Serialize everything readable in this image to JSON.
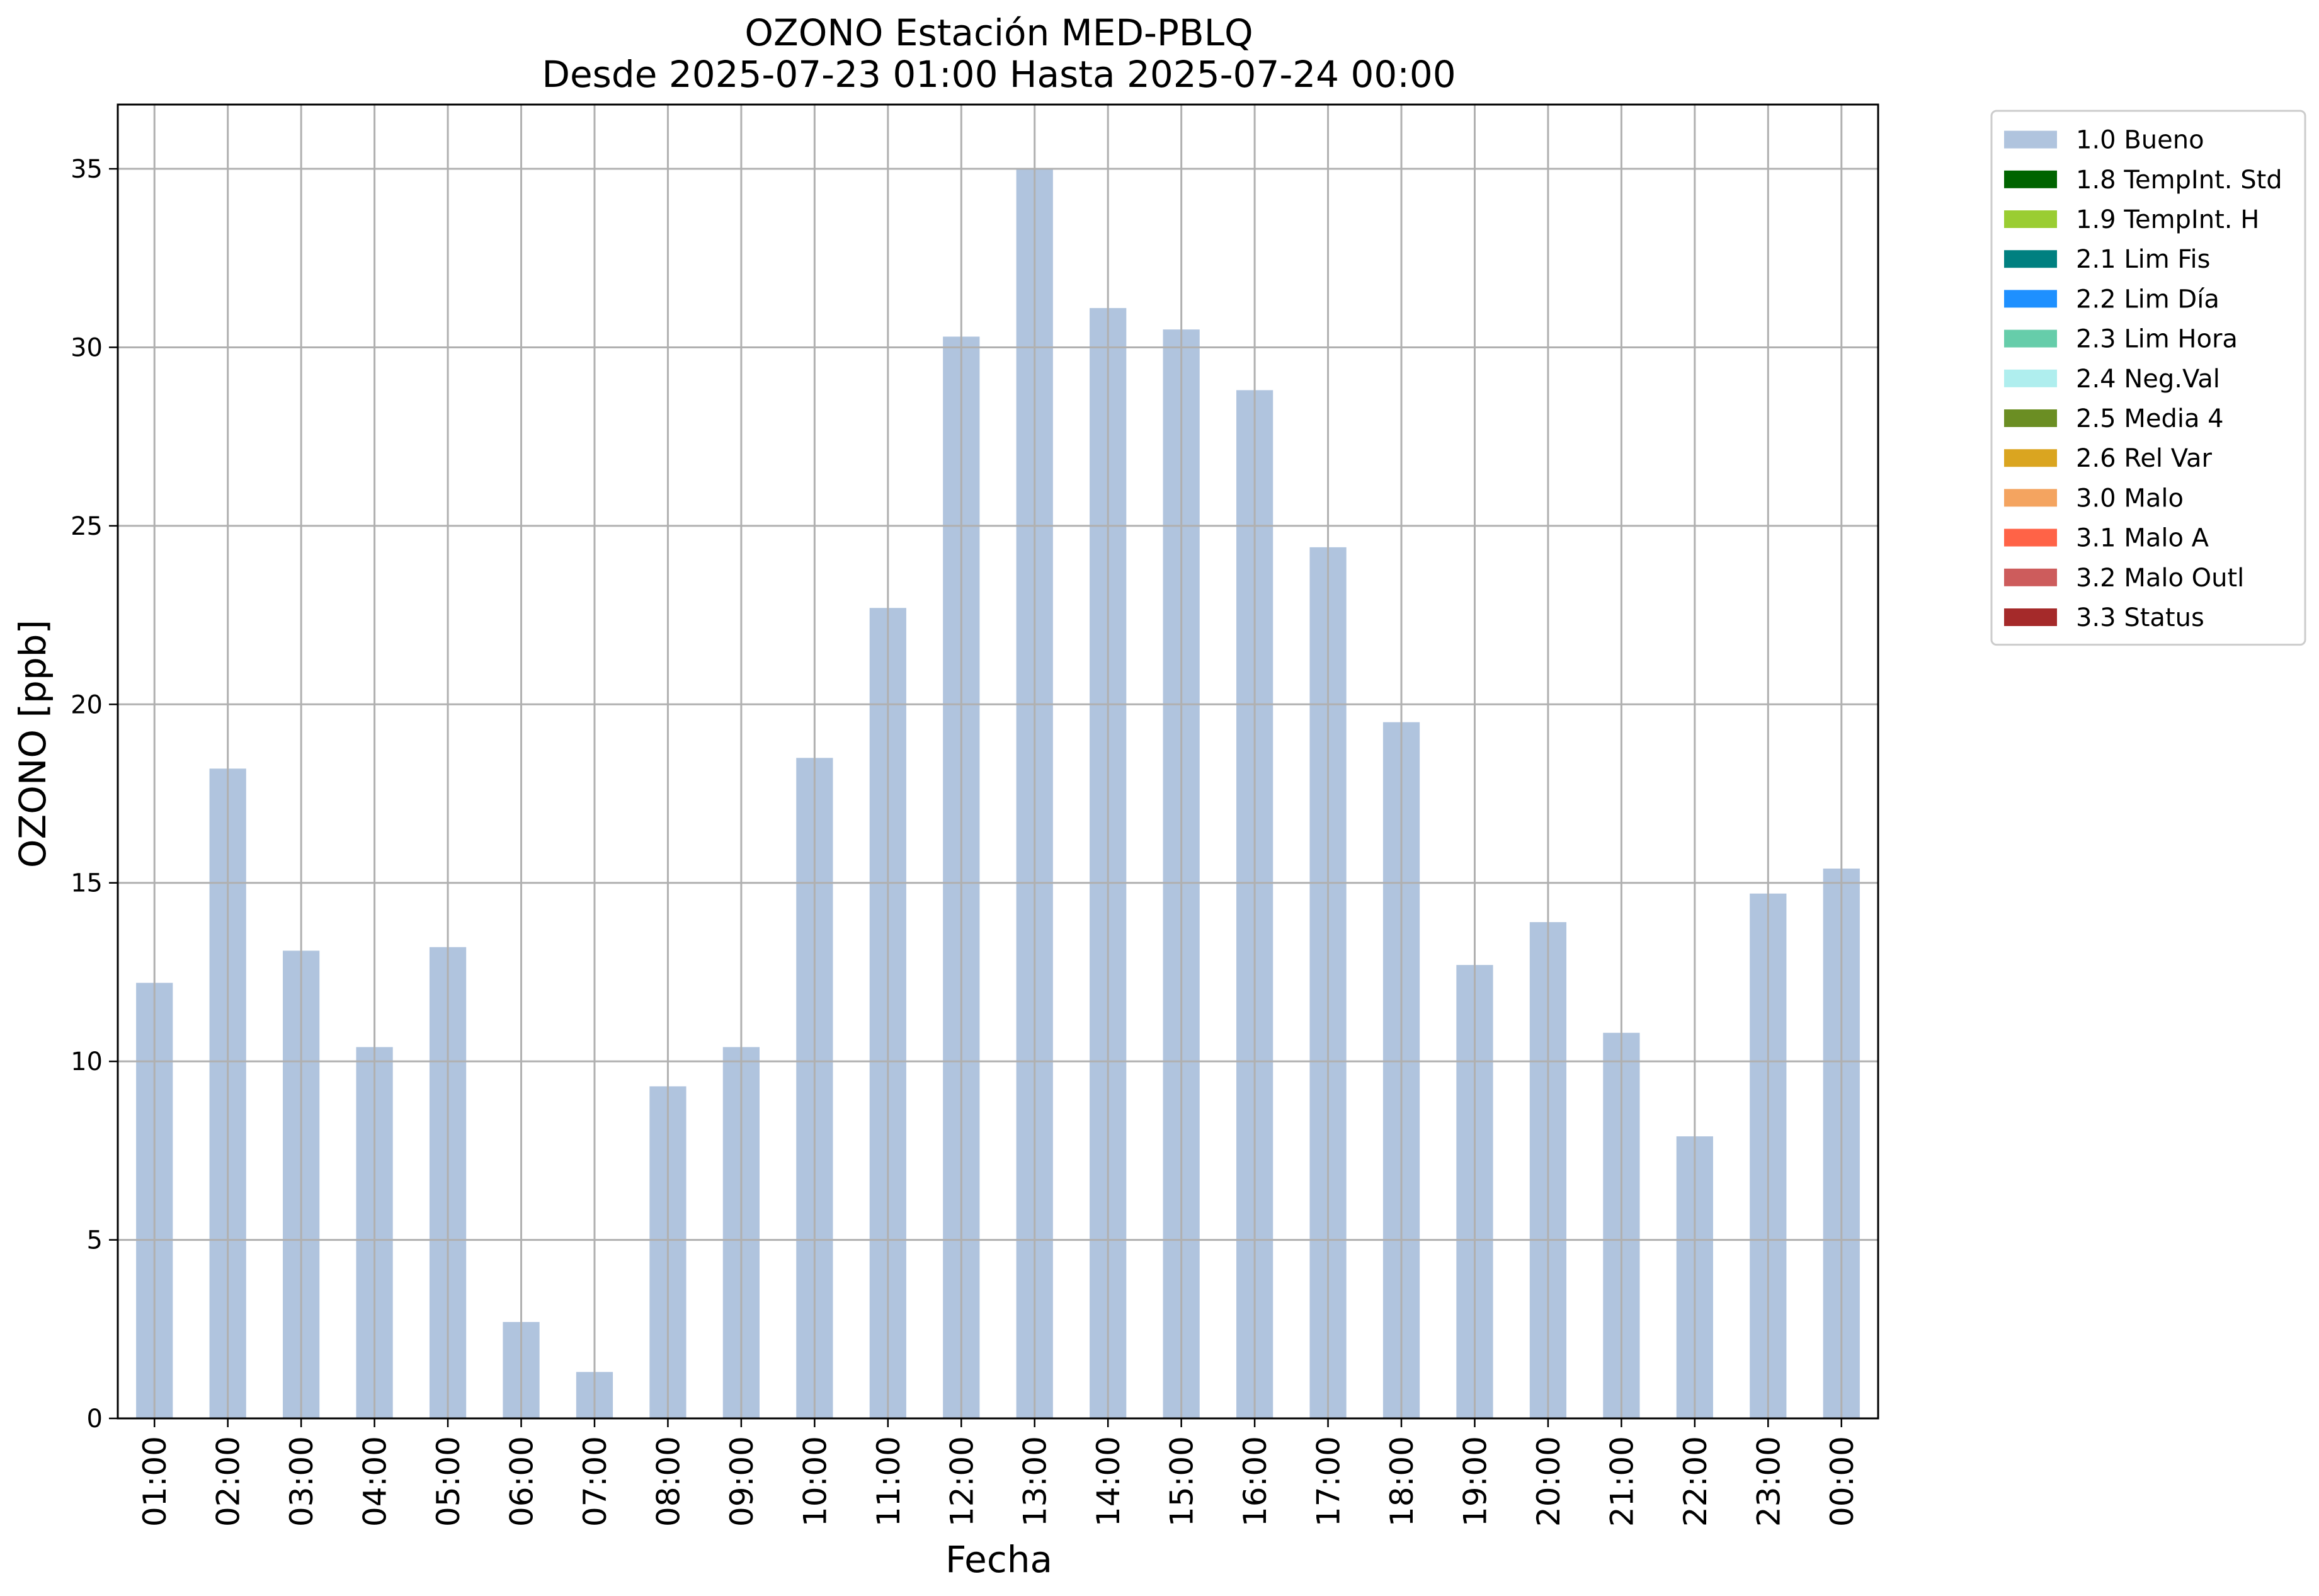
{
  "chart_data": {
    "type": "bar",
    "title": "OZONO Estación MED-PBLQ",
    "subtitle": "Desde 2025-07-23 01:00 Hasta 2025-07-24 00:00",
    "xlabel": "Fecha",
    "ylabel": "OZONO [ppb]",
    "ylim": [
      0,
      36.8
    ],
    "yticks": [
      0,
      5,
      10,
      15,
      20,
      25,
      30,
      35
    ],
    "grid": true,
    "legend_position": "outside-top-right",
    "categories": [
      "01:00",
      "02:00",
      "03:00",
      "04:00",
      "05:00",
      "06:00",
      "07:00",
      "08:00",
      "09:00",
      "10:00",
      "11:00",
      "12:00",
      "13:00",
      "14:00",
      "15:00",
      "16:00",
      "17:00",
      "18:00",
      "19:00",
      "20:00",
      "21:00",
      "22:00",
      "23:00",
      "00:00"
    ],
    "series": [
      {
        "name": "1.0 Bueno",
        "color": "#b0c4de",
        "values": [
          12.2,
          18.2,
          13.1,
          10.4,
          13.2,
          2.7,
          1.3,
          9.3,
          10.4,
          18.5,
          22.7,
          30.3,
          35.0,
          31.1,
          30.5,
          28.8,
          24.4,
          19.5,
          12.7,
          13.9,
          10.8,
          7.9,
          14.7,
          15.4
        ]
      }
    ],
    "legend": [
      {
        "label": "1.0 Bueno",
        "color": "#b0c4de"
      },
      {
        "label": "1.8 TempInt. Std",
        "color": "#006400"
      },
      {
        "label": "1.9 TempInt. H",
        "color": "#9acd32"
      },
      {
        "label": "2.1 Lim Fis",
        "color": "#008080"
      },
      {
        "label": "2.2 Lim Día",
        "color": "#1e90ff"
      },
      {
        "label": "2.3 Lim Hora",
        "color": "#66cdaa"
      },
      {
        "label": "2.4 Neg.Val",
        "color": "#afeeee"
      },
      {
        "label": "2.5 Media 4",
        "color": "#6b8e23"
      },
      {
        "label": "2.6 Rel Var",
        "color": "#daa520"
      },
      {
        "label": "3.0 Malo",
        "color": "#f4a460"
      },
      {
        "label": "3.1 Malo A",
        "color": "#ff6347"
      },
      {
        "label": "3.2 Malo Outl",
        "color": "#cd5c5c"
      },
      {
        "label": "3.3 Status",
        "color": "#a52a2a"
      }
    ]
  }
}
